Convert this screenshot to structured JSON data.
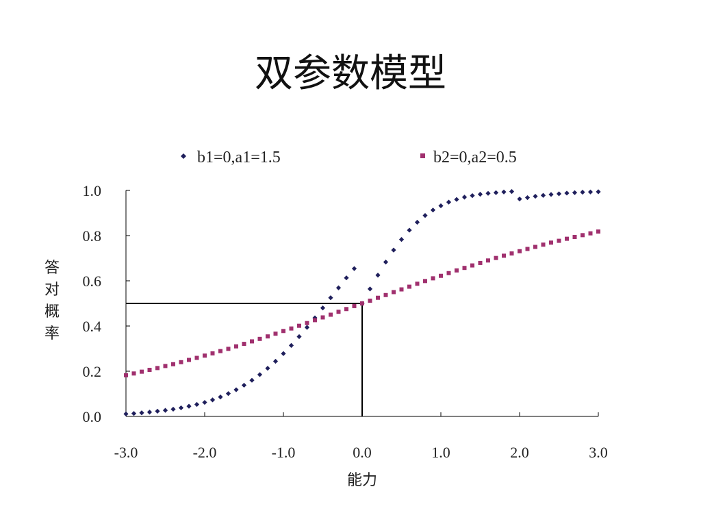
{
  "slide": {
    "title": "双参数模型"
  },
  "colors": {
    "series1": "#1f1f5c",
    "series2": "#a0306e",
    "axis": "#000000",
    "text": "#222222"
  },
  "chart_data": {
    "type": "scatter",
    "title": "",
    "xlabel": "能力",
    "ylabel": "答对概率",
    "xlim": [
      -3.0,
      3.0
    ],
    "ylim": [
      0.0,
      1.0
    ],
    "xticks": [
      "-3.0",
      "-2.0",
      "-1.0",
      "0.0",
      "1.0",
      "2.0",
      "3.0"
    ],
    "yticks": [
      "0.0",
      "0.2",
      "0.4",
      "0.6",
      "0.8",
      "1.0"
    ],
    "grid": false,
    "legend_position": "top",
    "reference_lines": [
      {
        "from": [
          -3.0,
          0.5
        ],
        "to": [
          0.0,
          0.5
        ]
      },
      {
        "from": [
          0.0,
          0.0
        ],
        "to": [
          0.0,
          0.5
        ]
      }
    ],
    "series": [
      {
        "name": "b1=0,a1=1.5",
        "marker": "diamond",
        "b": 0,
        "a": 1.5,
        "x": [
          -3.0,
          -2.9,
          -2.8,
          -2.7,
          -2.6,
          -2.5,
          -2.4,
          -2.3,
          -2.2,
          -2.1,
          -2.0,
          -1.9,
          -1.8,
          -1.7,
          -1.6,
          -1.5,
          -1.4,
          -1.3,
          -1.2,
          -1.1,
          -1.0,
          -0.9,
          -0.8,
          -0.7,
          -0.6,
          -0.5,
          -0.4,
          -0.3,
          -0.2,
          -0.1,
          0.0,
          0.1,
          0.2,
          0.3,
          0.4,
          0.5,
          0.6,
          0.7,
          0.8,
          0.9,
          1.0,
          1.1,
          1.2,
          1.3,
          1.4,
          1.5,
          1.6,
          1.7,
          1.8,
          1.9,
          2.0,
          2.1,
          2.2,
          2.3,
          2.4,
          2.5,
          2.6,
          2.7,
          2.8,
          2.9,
          3.0
        ],
        "y": [
          0.011,
          0.013,
          0.016,
          0.019,
          0.023,
          0.027,
          0.032,
          0.038,
          0.045,
          0.053,
          0.062,
          0.073,
          0.086,
          0.101,
          0.118,
          0.138,
          0.16,
          0.185,
          0.213,
          0.244,
          0.278,
          0.314,
          0.353,
          0.394,
          0.436,
          0.48,
          0.525,
          0.569,
          0.613,
          0.654,
          0.5,
          0.564,
          0.625,
          0.683,
          0.736,
          0.783,
          0.824,
          0.859,
          0.889,
          0.913,
          0.932,
          0.948,
          0.96,
          0.97,
          0.977,
          0.983,
          0.987,
          0.99,
          0.993,
          0.995,
          0.962,
          0.968,
          0.974,
          0.978,
          0.982,
          0.985,
          0.988,
          0.99,
          0.992,
          0.993,
          0.994
        ]
      },
      {
        "name": "b2=0,a2=0.5",
        "marker": "square",
        "b": 0,
        "a": 0.5,
        "x": [
          -3.0,
          -2.9,
          -2.8,
          -2.7,
          -2.6,
          -2.5,
          -2.4,
          -2.3,
          -2.2,
          -2.1,
          -2.0,
          -1.9,
          -1.8,
          -1.7,
          -1.6,
          -1.5,
          -1.4,
          -1.3,
          -1.2,
          -1.1,
          -1.0,
          -0.9,
          -0.8,
          -0.7,
          -0.6,
          -0.5,
          -0.4,
          -0.3,
          -0.2,
          -0.1,
          0.0,
          0.1,
          0.2,
          0.3,
          0.4,
          0.5,
          0.6,
          0.7,
          0.8,
          0.9,
          1.0,
          1.1,
          1.2,
          1.3,
          1.4,
          1.5,
          1.6,
          1.7,
          1.8,
          1.9,
          2.0,
          2.1,
          2.2,
          2.3,
          2.4,
          2.5,
          2.6,
          2.7,
          2.8,
          2.9,
          3.0
        ],
        "y": [
          0.182,
          0.19,
          0.198,
          0.206,
          0.214,
          0.223,
          0.231,
          0.24,
          0.25,
          0.259,
          0.269,
          0.279,
          0.289,
          0.299,
          0.31,
          0.321,
          0.332,
          0.343,
          0.354,
          0.366,
          0.378,
          0.389,
          0.401,
          0.413,
          0.426,
          0.438,
          0.45,
          0.463,
          0.475,
          0.488,
          0.5,
          0.512,
          0.525,
          0.537,
          0.55,
          0.562,
          0.574,
          0.587,
          0.599,
          0.611,
          0.622,
          0.634,
          0.646,
          0.657,
          0.668,
          0.679,
          0.69,
          0.701,
          0.711,
          0.721,
          0.731,
          0.741,
          0.75,
          0.76,
          0.769,
          0.777,
          0.786,
          0.794,
          0.802,
          0.81,
          0.818
        ]
      }
    ]
  }
}
